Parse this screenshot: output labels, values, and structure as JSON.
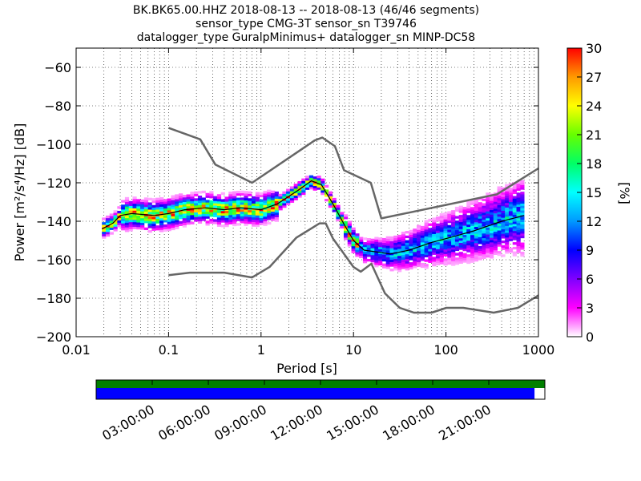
{
  "chart_data": {
    "type": "heatmap",
    "title_lines": [
      "BK.BK65.00.HHZ   2018-08-13 -- 2018-08-13  (46/46 segments)",
      "sensor_type CMG-3T sensor_sn T39746",
      "datalogger_type GuralpMinimus+ datalogger_sn MINP-DC58"
    ],
    "xlabel": "Period [s]",
    "ylabel": "Power [m²/s⁴/Hz] [dB]",
    "xscale": "log",
    "xlim": [
      0.01,
      1000
    ],
    "ylim": [
      -200,
      -50
    ],
    "x_ticks": [
      0.01,
      0.1,
      1,
      10,
      100,
      1000
    ],
    "x_tick_labels": [
      "0.01",
      "0.1",
      "1",
      "10",
      "100",
      "1000"
    ],
    "y_ticks": [
      -200,
      -180,
      -160,
      -140,
      -120,
      -100,
      -80,
      -60
    ],
    "y_tick_labels": [
      "−200",
      "−180",
      "−160",
      "−140",
      "−120",
      "−100",
      "−80",
      "−60"
    ],
    "grid": "dotted, log-minor x",
    "colorbar": {
      "label": "[%]",
      "range": [
        0,
        30
      ],
      "ticks": [
        0,
        3,
        6,
        9,
        12,
        15,
        18,
        21,
        24,
        27,
        30
      ],
      "tick_labels": [
        "0",
        "3",
        "6",
        "9",
        "12",
        "15",
        "18",
        "21",
        "24",
        "27",
        "30"
      ]
    },
    "nhnm": {
      "name": "high noise model",
      "x": [
        0.1,
        0.22,
        0.32,
        0.8,
        3.8,
        4.6,
        6.3,
        7.9,
        15.4,
        20,
        354.8,
        1000
      ],
      "y": [
        -91.5,
        -97.4,
        -110.5,
        -120,
        -98,
        -96.5,
        -101,
        -113.5,
        -120,
        -138.5,
        -126,
        -112.5
      ]
    },
    "nlnm": {
      "name": "low noise model",
      "x": [
        0.1,
        0.17,
        0.4,
        0.8,
        1.24,
        2.4,
        4.3,
        5,
        6,
        10,
        12,
        15.6,
        21.9,
        31.6,
        45,
        70,
        101,
        154,
        328,
        600,
        1000
      ],
      "y": [
        -168,
        -166.7,
        -166.7,
        -169.2,
        -163.7,
        -148.6,
        -141.1,
        -141.1,
        -149,
        -163.8,
        -166.2,
        -162.1,
        -177.5,
        -185,
        -187.5,
        -187.5,
        -185,
        -185,
        -187.5,
        -185,
        -178.5
      ]
    },
    "mode_curve": {
      "name": "mode",
      "x": [
        0.019,
        0.025,
        0.03,
        0.04,
        0.07,
        0.1,
        0.15,
        0.25,
        0.4,
        0.6,
        1,
        1.5,
        2.5,
        3.5,
        4.5,
        6,
        8,
        10,
        13,
        18,
        25,
        40,
        70,
        120,
        200,
        400,
        700
      ],
      "y": [
        -144,
        -141,
        -137,
        -136,
        -137,
        -136,
        -134,
        -133,
        -134,
        -133,
        -134,
        -131,
        -124,
        -119,
        -121,
        -131,
        -142,
        -150,
        -155,
        -156,
        -157,
        -155,
        -151,
        -148,
        -145,
        -140,
        -137
      ]
    },
    "data_availability": {
      "x_tick_labels": [
        "03:00:00",
        "06:00:00",
        "09:00:00",
        "12:00:00",
        "15:00:00",
        "18:00:00",
        "21:00:00"
      ],
      "coverage_fraction": 0.977,
      "colors": {
        "top": "#008000",
        "bottom": "#0000ff"
      }
    }
  },
  "colors": {
    "noise_model": "#666666",
    "mode": "#000000",
    "cmap": [
      "#ffffff",
      "#ff00ff",
      "#7f00ff",
      "#0000ff",
      "#0099ff",
      "#00ffff",
      "#00ff66",
      "#66ff00",
      "#ffff00",
      "#ff9900",
      "#ff0000"
    ]
  }
}
